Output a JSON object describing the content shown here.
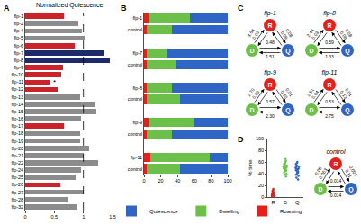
{
  "chart_data": [
    {
      "panel": "A",
      "type": "bar",
      "orientation": "horizontal",
      "x_label": "Normalized Quiescence",
      "categories": [
        "flp-1",
        "flp-2",
        "flp-4",
        "flp-5",
        "flp-6",
        "flp-7",
        "flp-8",
        "flp-9",
        "flp-10",
        "flp-11",
        "flp-12",
        "flp-13",
        "flp-14",
        "flp-15",
        "flp-16",
        "flp-17",
        "flp-18",
        "flp-19",
        "flp-20",
        "flp-21",
        "flp-22",
        "flp-24",
        "flp-25",
        "flp-26",
        "flp-27",
        "flp-28",
        "flp-32"
      ],
      "values": [
        0.66,
        0.92,
        0.98,
        1.02,
        0.85,
        1.35,
        1.45,
        0.65,
        0.62,
        0.42,
        0.56,
        0.95,
        1.2,
        1.22,
        0.96,
        0.66,
        0.95,
        0.94,
        1.1,
        1.0,
        1.25,
        0.96,
        0.86,
        0.6,
        1.0,
        0.72,
        0.9
      ],
      "colors": [
        "#cc2229",
        "#8c8c8c",
        "#8c8c8c",
        "#8c8c8c",
        "#cc2229",
        "#1f2a6b",
        "#1f2a6b",
        "#cc2229",
        "#cc2229",
        "#cc2229",
        "#cc2229",
        "#8c8c8c",
        "#8c8c8c",
        "#8c8c8c",
        "#8c8c8c",
        "#cc2229",
        "#8c8c8c",
        "#8c8c8c",
        "#8c8c8c",
        "#8c8c8c",
        "#8c8c8c",
        "#8c8c8c",
        "#8c8c8c",
        "#cc2229",
        "#8c8c8c",
        "#8c8c8c",
        "#8c8c8c"
      ],
      "xlim": [
        0,
        1.5
      ],
      "xticks": [
        0,
        0.5,
        1,
        1.5
      ],
      "grid": false,
      "reference_line": 1,
      "annotations": [
        {
          "category": "flp-11",
          "text": "*"
        }
      ]
    },
    {
      "panel": "B",
      "type": "bar",
      "orientation": "horizontal",
      "stacked": true,
      "legend": "bottom",
      "categories": [
        "flp-1",
        "control",
        null,
        "flp-7",
        "control",
        null,
        "flp-8",
        "control",
        null,
        "flp-9",
        "control",
        null,
        "flp-11",
        "control"
      ],
      "series": [
        {
          "name": "Roaming",
          "color": "#e3201b",
          "values": [
            5,
            3,
            null,
            3,
            3,
            null,
            3,
            3,
            null,
            5,
            3,
            null,
            8,
            3
          ]
        },
        {
          "name": "Dwelling",
          "color": "#6cc04a",
          "values": [
            50,
            30,
            null,
            25,
            35,
            null,
            30,
            40,
            null,
            55,
            30,
            null,
            70,
            40
          ]
        },
        {
          "name": "Quiescence",
          "color": "#2f66c5",
          "values": [
            45,
            67,
            null,
            72,
            62,
            null,
            67,
            57,
            null,
            40,
            67,
            null,
            22,
            57
          ]
        }
      ],
      "xlim": [
        0,
        100
      ],
      "xticks": [
        0,
        20,
        40,
        60,
        80,
        100
      ],
      "grid": false
    },
    {
      "panel": "D",
      "type": "scatter",
      "y_label": "% time",
      "groups": [
        {
          "category": "R",
          "color": "#e3201b",
          "values": [
            1,
            2,
            2,
            3,
            3,
            4,
            4,
            5,
            5,
            6,
            6,
            7,
            8,
            9,
            10,
            12,
            14,
            3,
            2,
            4
          ]
        },
        {
          "category": "D",
          "color": "#6cc04a",
          "values": [
            35,
            38,
            40,
            42,
            44,
            45,
            46,
            47,
            48,
            49,
            50,
            50,
            51,
            52,
            53,
            54,
            55,
            56,
            58,
            60,
            62,
            65
          ]
        },
        {
          "category": "Q",
          "color": "#2f66c5",
          "values": [
            30,
            33,
            36,
            38,
            40,
            42,
            43,
            44,
            45,
            46,
            47,
            48,
            49,
            50,
            51,
            52,
            54,
            56,
            58,
            60
          ]
        }
      ],
      "ylim": [
        0,
        100
      ],
      "yticks": [
        0,
        20,
        40,
        60,
        80,
        100
      ],
      "grid": false
    }
  ],
  "diagrams": {
    "panel": "C",
    "nodes": [
      {
        "label": "R",
        "color": "#e3201b"
      },
      {
        "label": "D",
        "color": "#6cc04a"
      },
      {
        "label": "Q",
        "color": "#2f66c5"
      }
    ],
    "items": [
      {
        "title": "flp-1",
        "rates": {
          "R_D": "3.64",
          "D_R": "0.06",
          "R_Q": "0.09",
          "Q_R": "0.08",
          "D_Q": "0.48",
          "Q_D": "1.51"
        }
      },
      {
        "title": "flp-8",
        "rates": {
          "R_D": "2.46",
          "D_R": "0.03",
          "R_Q": "0.08",
          "Q_R": "0.08",
          "D_Q": "0.59",
          "Q_D": "1.33"
        }
      },
      {
        "title": "flp-9",
        "rates": {
          "R_D": "2.70",
          "D_R": "0.05",
          "R_Q": "0.10",
          "Q_R": "0.01",
          "D_Q": "0.57",
          "Q_D": "2.30"
        }
      },
      {
        "title": "flp-11",
        "rates": {
          "R_D": "2.91",
          "D_R": "0.04",
          "R_Q": "0.13",
          "Q_R": "0.01",
          "D_Q": "0.53",
          "Q_D": "2.75"
        }
      }
    ]
  },
  "control_diagram": {
    "title": "control",
    "rates": {
      "R_D": "0.05",
      "D_R": "0.003",
      "R_Q": "0.11",
      "Q_R": "0.001",
      "D_Q": "0.014",
      "Q_D": "0.014"
    }
  }
}
